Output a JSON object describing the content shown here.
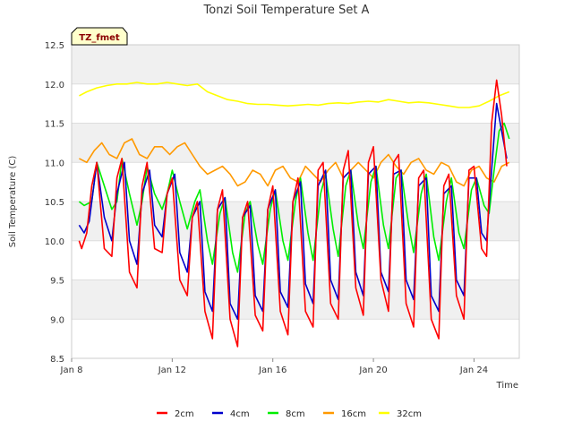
{
  "chart_data": {
    "type": "line",
    "title": "Tonzi Soil Temperature Set A",
    "xlabel": "Time",
    "ylabel": "Soil Temperature (C)",
    "badge": "TZ_fmet",
    "xlim": [
      8,
      25.8
    ],
    "ylim": [
      8.5,
      12.5
    ],
    "yticks": [
      "8.5",
      "9.0",
      "9.5",
      "10.0",
      "10.5",
      "11.0",
      "11.5",
      "12.0",
      "12.5"
    ],
    "xticks": [
      {
        "value": 8,
        "label": "Jan 8"
      },
      {
        "value": 12,
        "label": "Jan 12"
      },
      {
        "value": 16,
        "label": "Jan 16"
      },
      {
        "value": 20,
        "label": "Jan 20"
      },
      {
        "value": 24,
        "label": "Jan 24"
      }
    ],
    "grid": true,
    "legend_position": "bottom",
    "series": [
      {
        "name": "2cm",
        "color": "#ff0000",
        "x": [
          8.3,
          8.4,
          8.6,
          8.8,
          9.0,
          9.3,
          9.6,
          9.8,
          10.0,
          10.3,
          10.6,
          10.8,
          11.0,
          11.3,
          11.6,
          11.8,
          12.0,
          12.3,
          12.6,
          12.8,
          13.0,
          13.3,
          13.6,
          13.8,
          14.0,
          14.3,
          14.6,
          14.8,
          15.0,
          15.3,
          15.6,
          15.8,
          16.0,
          16.3,
          16.6,
          16.8,
          17.0,
          17.3,
          17.6,
          17.8,
          18.0,
          18.3,
          18.6,
          18.8,
          19.0,
          19.3,
          19.6,
          19.8,
          20.0,
          20.3,
          20.6,
          20.8,
          21.0,
          21.3,
          21.6,
          21.8,
          22.0,
          22.3,
          22.6,
          22.8,
          23.0,
          23.3,
          23.6,
          23.8,
          24.0,
          24.3,
          24.5,
          24.7,
          24.9,
          25.1,
          25.3
        ],
        "y": [
          10.0,
          9.9,
          10.1,
          10.7,
          11.0,
          9.9,
          9.8,
          10.8,
          11.05,
          9.6,
          9.4,
          10.7,
          11.0,
          9.9,
          9.85,
          10.6,
          10.8,
          9.5,
          9.3,
          10.3,
          10.5,
          9.1,
          8.75,
          10.4,
          10.65,
          9.0,
          8.65,
          10.3,
          10.5,
          9.05,
          8.85,
          10.4,
          10.7,
          9.1,
          8.8,
          10.5,
          10.8,
          9.1,
          8.9,
          10.9,
          11.0,
          9.2,
          9.0,
          10.9,
          11.15,
          9.4,
          9.05,
          11.0,
          11.2,
          9.5,
          9.1,
          11.0,
          11.1,
          9.2,
          8.9,
          10.8,
          10.9,
          9.0,
          8.75,
          10.7,
          10.85,
          9.3,
          9.0,
          10.9,
          10.95,
          9.9,
          9.8,
          11.5,
          12.05,
          11.6,
          10.95
        ]
      },
      {
        "name": "4cm",
        "color": "#0000cc",
        "x": [
          8.3,
          8.5,
          8.7,
          9.0,
          9.3,
          9.6,
          9.8,
          10.1,
          10.3,
          10.6,
          10.8,
          11.1,
          11.3,
          11.6,
          11.8,
          12.1,
          12.3,
          12.6,
          12.8,
          13.1,
          13.3,
          13.6,
          13.8,
          14.1,
          14.3,
          14.6,
          14.8,
          15.1,
          15.3,
          15.6,
          15.8,
          16.1,
          16.3,
          16.6,
          16.8,
          17.1,
          17.3,
          17.6,
          17.8,
          18.1,
          18.3,
          18.6,
          18.8,
          19.1,
          19.3,
          19.6,
          19.8,
          20.1,
          20.3,
          20.6,
          20.8,
          21.1,
          21.3,
          21.6,
          21.8,
          22.1,
          22.3,
          22.6,
          22.8,
          23.1,
          23.3,
          23.6,
          23.8,
          24.1,
          24.3,
          24.5,
          24.7,
          24.9,
          25.1,
          25.3
        ],
        "y": [
          10.2,
          10.1,
          10.25,
          11.0,
          10.3,
          10.0,
          10.6,
          11.0,
          10.0,
          9.7,
          10.6,
          10.9,
          10.2,
          10.05,
          10.6,
          10.85,
          9.85,
          9.6,
          10.3,
          10.5,
          9.35,
          9.1,
          10.4,
          10.55,
          9.2,
          9.0,
          10.3,
          10.45,
          9.3,
          9.1,
          10.4,
          10.65,
          9.35,
          9.15,
          10.5,
          10.75,
          9.45,
          9.2,
          10.7,
          10.9,
          9.5,
          9.25,
          10.8,
          10.9,
          9.6,
          9.3,
          10.85,
          10.95,
          9.6,
          9.35,
          10.85,
          10.9,
          9.5,
          9.25,
          10.7,
          10.8,
          9.3,
          9.1,
          10.6,
          10.7,
          9.5,
          9.3,
          10.8,
          10.8,
          10.1,
          10.0,
          10.9,
          11.75,
          11.4,
          11.05
        ]
      },
      {
        "name": "8cm",
        "color": "#00ee00",
        "x": [
          8.3,
          8.5,
          8.8,
          9.0,
          9.3,
          9.6,
          9.8,
          10.0,
          10.3,
          10.6,
          10.8,
          11.0,
          11.3,
          11.6,
          11.8,
          12.0,
          12.3,
          12.6,
          12.9,
          13.1,
          13.4,
          13.6,
          13.9,
          14.1,
          14.4,
          14.6,
          14.9,
          15.1,
          15.4,
          15.6,
          15.9,
          16.1,
          16.4,
          16.6,
          16.9,
          17.1,
          17.4,
          17.6,
          17.9,
          18.1,
          18.4,
          18.6,
          18.9,
          19.1,
          19.4,
          19.6,
          19.9,
          20.1,
          20.4,
          20.6,
          20.9,
          21.1,
          21.4,
          21.6,
          21.9,
          22.1,
          22.4,
          22.6,
          22.9,
          23.1,
          23.4,
          23.6,
          23.9,
          24.1,
          24.4,
          24.6,
          24.8,
          25.0,
          25.2,
          25.4
        ],
        "y": [
          10.5,
          10.45,
          10.5,
          11.0,
          10.7,
          10.4,
          10.5,
          11.05,
          10.6,
          10.2,
          10.5,
          10.95,
          10.6,
          10.4,
          10.6,
          10.9,
          10.5,
          10.15,
          10.5,
          10.65,
          10.0,
          9.7,
          10.35,
          10.55,
          9.85,
          9.6,
          10.35,
          10.5,
          9.95,
          9.7,
          10.4,
          10.65,
          10.0,
          9.75,
          10.5,
          10.8,
          10.1,
          9.75,
          10.6,
          10.85,
          10.15,
          9.8,
          10.7,
          10.9,
          10.2,
          9.9,
          10.75,
          10.95,
          10.2,
          9.9,
          10.8,
          10.9,
          10.2,
          9.85,
          10.6,
          10.85,
          10.05,
          9.75,
          10.5,
          10.8,
          10.1,
          9.9,
          10.65,
          10.8,
          10.45,
          10.35,
          10.9,
          11.4,
          11.5,
          11.3
        ]
      },
      {
        "name": "16cm",
        "color": "#ff9900",
        "x": [
          8.3,
          8.6,
          8.9,
          9.2,
          9.5,
          9.8,
          10.1,
          10.4,
          10.7,
          11.0,
          11.3,
          11.6,
          11.9,
          12.2,
          12.5,
          12.8,
          13.1,
          13.4,
          13.7,
          14.0,
          14.3,
          14.6,
          14.9,
          15.2,
          15.5,
          15.8,
          16.1,
          16.4,
          16.7,
          17.0,
          17.3,
          17.6,
          17.9,
          18.2,
          18.5,
          18.8,
          19.1,
          19.4,
          19.7,
          20.0,
          20.3,
          20.6,
          20.9,
          21.2,
          21.5,
          21.8,
          22.1,
          22.4,
          22.7,
          23.0,
          23.3,
          23.6,
          23.9,
          24.2,
          24.5,
          24.8,
          25.1,
          25.4
        ],
        "y": [
          11.05,
          11.0,
          11.15,
          11.25,
          11.1,
          11.05,
          11.25,
          11.3,
          11.1,
          11.05,
          11.2,
          11.2,
          11.1,
          11.2,
          11.25,
          11.1,
          10.95,
          10.85,
          10.9,
          10.95,
          10.85,
          10.7,
          10.75,
          10.9,
          10.85,
          10.7,
          10.9,
          10.95,
          10.8,
          10.75,
          10.95,
          10.85,
          10.75,
          10.9,
          11.0,
          10.8,
          10.9,
          11.0,
          10.9,
          10.8,
          11.0,
          11.1,
          10.95,
          10.85,
          11.0,
          11.05,
          10.9,
          10.85,
          11.0,
          10.95,
          10.75,
          10.7,
          10.9,
          10.95,
          10.8,
          10.75,
          10.95,
          11.0
        ]
      },
      {
        "name": "32cm",
        "color": "#ffff00",
        "x": [
          8.3,
          8.6,
          9.0,
          9.4,
          9.8,
          10.2,
          10.6,
          11.0,
          11.4,
          11.8,
          12.2,
          12.6,
          13.0,
          13.4,
          13.8,
          14.2,
          14.6,
          15.0,
          15.4,
          15.8,
          16.2,
          16.6,
          17.0,
          17.4,
          17.8,
          18.2,
          18.6,
          19.0,
          19.4,
          19.8,
          20.2,
          20.6,
          21.0,
          21.4,
          21.8,
          22.2,
          22.6,
          23.0,
          23.4,
          23.8,
          24.2,
          24.6,
          25.0,
          25.4
        ],
        "y": [
          11.85,
          11.9,
          11.95,
          11.98,
          12.0,
          12.0,
          12.02,
          12.0,
          12.0,
          12.02,
          12.0,
          11.98,
          12.0,
          11.9,
          11.85,
          11.8,
          11.78,
          11.75,
          11.74,
          11.74,
          11.73,
          11.72,
          11.73,
          11.74,
          11.73,
          11.75,
          11.76,
          11.75,
          11.77,
          11.78,
          11.77,
          11.8,
          11.78,
          11.76,
          11.77,
          11.76,
          11.74,
          11.72,
          11.7,
          11.7,
          11.72,
          11.78,
          11.85,
          11.9
        ]
      }
    ]
  }
}
